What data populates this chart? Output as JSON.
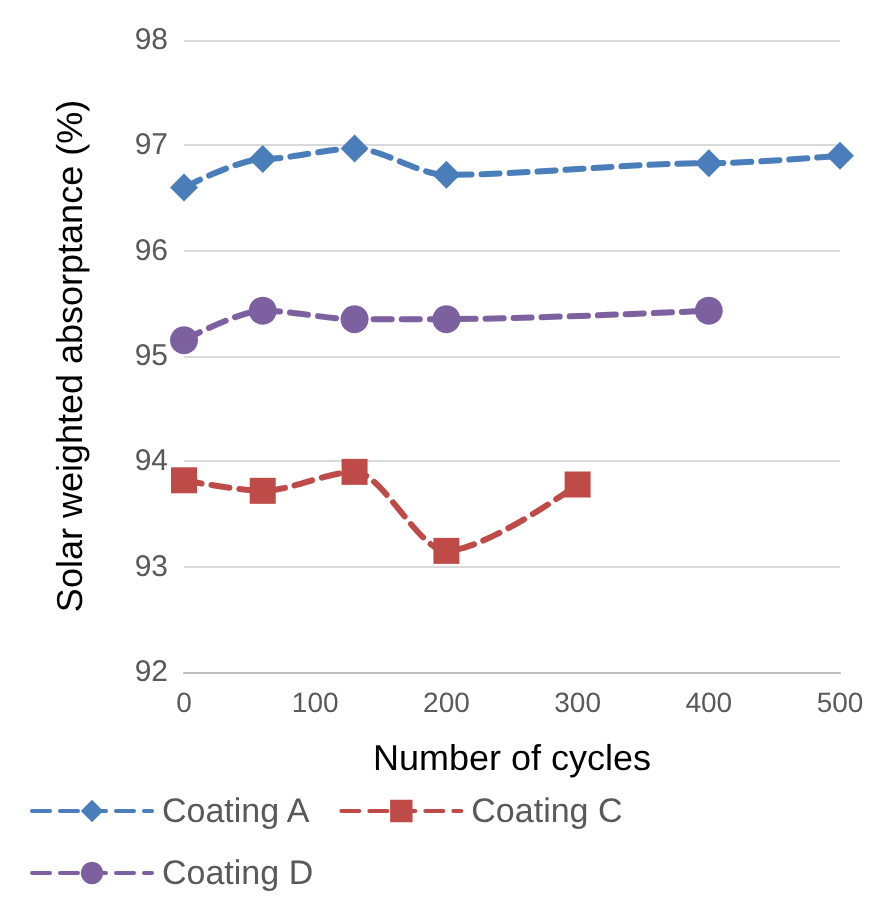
{
  "chart_data": {
    "type": "line",
    "xlabel": "Number of cycles",
    "ylabel": "Solar weighted absorptance (%)",
    "xlim": [
      0,
      500
    ],
    "xticks": [
      0,
      100,
      200,
      300,
      400,
      500
    ],
    "ylim": [
      92,
      98
    ],
    "yticks": [
      92,
      93,
      94,
      95,
      96,
      97,
      98
    ],
    "grid": "y",
    "legend": "bottom",
    "line_style": "dashed",
    "series": [
      {
        "name": "Coating A",
        "color": "#4a7ebb",
        "marker": "diamond",
        "x": [
          0,
          60,
          130,
          200,
          400,
          500
        ],
        "values": [
          96.6,
          96.87,
          96.97,
          96.72,
          96.83,
          96.9
        ]
      },
      {
        "name": "Coating C",
        "color": "#be4b48",
        "marker": "square",
        "x": [
          0,
          60,
          130,
          200,
          300
        ],
        "values": [
          93.82,
          93.72,
          93.9,
          93.15,
          93.78
        ]
      },
      {
        "name": "Coating D",
        "color": "#7d60a0",
        "marker": "circle",
        "x": [
          0,
          60,
          130,
          200,
          400
        ],
        "values": [
          95.15,
          95.43,
          95.35,
          95.35,
          95.43
        ]
      }
    ]
  }
}
